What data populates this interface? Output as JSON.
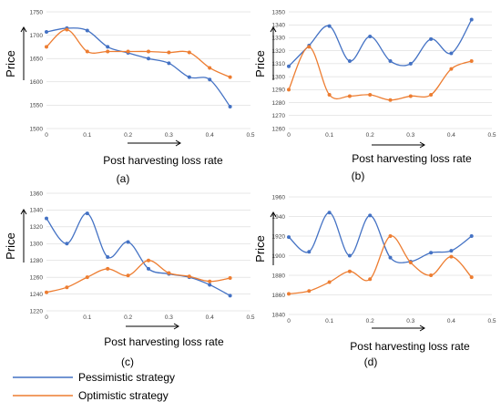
{
  "legend": {
    "pessimistic_label": "Pessimistic strategy",
    "optimistic_label": "Optimistic strategy"
  },
  "colors": {
    "pessimistic": "#4472c4",
    "optimistic": "#ed7d31"
  },
  "chart_data": [
    {
      "type": "line",
      "caption": "(a)",
      "ylabel": "Price",
      "xlabel": "Post harvesting loss rate",
      "xlim": [
        0,
        0.5
      ],
      "ylim": [
        1500,
        1750
      ],
      "xticks": [
        0,
        0.1,
        0.2,
        0.3,
        0.4,
        0.5
      ],
      "yticks": [
        1500,
        1550,
        1600,
        1650,
        1700,
        1750
      ],
      "x": [
        0,
        0.05,
        0.1,
        0.15,
        0.2,
        0.25,
        0.3,
        0.35,
        0.4,
        0.45
      ],
      "series": [
        {
          "name": "Pessimistic strategy",
          "values": [
            1707,
            1715,
            1710,
            1675,
            1662,
            1650,
            1640,
            1610,
            1605,
            1547
          ]
        },
        {
          "name": "Optimistic strategy",
          "values": [
            1675,
            1712,
            1665,
            1665,
            1665,
            1665,
            1663,
            1663,
            1630,
            1610
          ]
        }
      ]
    },
    {
      "type": "line",
      "caption": "(b)",
      "ylabel": "Price",
      "xlabel": "Post harvesting loss rate",
      "xlim": [
        0,
        0.5
      ],
      "ylim": [
        1260,
        1350
      ],
      "xticks": [
        0,
        0.1,
        0.2,
        0.3,
        0.4,
        0.5
      ],
      "yticks": [
        1260,
        1270,
        1280,
        1290,
        1300,
        1310,
        1320,
        1330,
        1340,
        1350
      ],
      "x": [
        0,
        0.05,
        0.1,
        0.15,
        0.2,
        0.25,
        0.3,
        0.35,
        0.4,
        0.45
      ],
      "series": [
        {
          "name": "Pessimistic strategy",
          "values": [
            1308,
            1324,
            1339,
            1312,
            1331,
            1312,
            1310,
            1329,
            1318,
            1344
          ]
        },
        {
          "name": "Optimistic strategy",
          "values": [
            1290,
            1323,
            1286,
            1285,
            1286,
            1282,
            1285,
            1286,
            1306,
            1312
          ]
        }
      ]
    },
    {
      "type": "line",
      "caption": "(c)",
      "ylabel": "Price",
      "xlabel": "Post harvesting loss rate",
      "xlim": [
        0,
        0.5
      ],
      "ylim": [
        1220,
        1360
      ],
      "xticks": [
        0,
        0.1,
        0.2,
        0.3,
        0.4,
        0.5
      ],
      "yticks": [
        1220,
        1240,
        1260,
        1280,
        1300,
        1320,
        1340,
        1360
      ],
      "x": [
        0,
        0.05,
        0.1,
        0.15,
        0.2,
        0.25,
        0.3,
        0.35,
        0.4,
        0.45
      ],
      "series": [
        {
          "name": "Pessimistic strategy",
          "values": [
            1330,
            1300,
            1336,
            1284,
            1302,
            1270,
            1264,
            1260,
            1251,
            1238
          ]
        },
        {
          "name": "Optimistic strategy",
          "values": [
            1242,
            1248,
            1260,
            1270,
            1262,
            1280,
            1265,
            1261,
            1255,
            1259
          ]
        }
      ]
    },
    {
      "type": "line",
      "caption": "(d)",
      "ylabel": "Price",
      "xlabel": "Post harvesting loss rate",
      "xlim": [
        0,
        0.5
      ],
      "ylim": [
        1840,
        1960
      ],
      "xticks": [
        0,
        0.1,
        0.2,
        0.3,
        0.4,
        0.5
      ],
      "yticks": [
        1840,
        1860,
        1880,
        1900,
        1920,
        1940,
        1960
      ],
      "x": [
        0,
        0.05,
        0.1,
        0.15,
        0.2,
        0.25,
        0.3,
        0.35,
        0.4,
        0.45
      ],
      "series": [
        {
          "name": "Pessimistic strategy",
          "values": [
            1919,
            1904,
            1944,
            1900,
            1941,
            1898,
            1894,
            1903,
            1905,
            1920
          ]
        },
        {
          "name": "Optimistic strategy",
          "values": [
            1861,
            1864,
            1873,
            1884,
            1876,
            1920,
            1893,
            1880,
            1899,
            1878
          ]
        }
      ]
    }
  ]
}
